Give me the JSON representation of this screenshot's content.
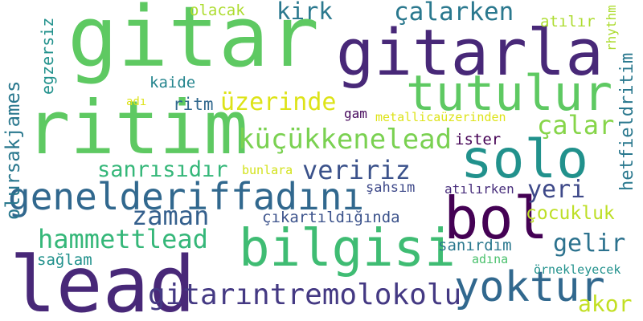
{
  "cloud": {
    "words": [
      {
        "text": "gitar",
        "color": "#5ec962"
      },
      {
        "text": "gitarla",
        "color": "#482878"
      },
      {
        "text": "tutulur",
        "color": "#5ec962"
      },
      {
        "text": "ritim",
        "color": "#5ec962"
      },
      {
        "text": "solo",
        "color": "#21918c"
      },
      {
        "text": "lead",
        "color": "#482878"
      },
      {
        "text": "bol",
        "color": "#440154"
      },
      {
        "text": "bilgisi",
        "color": "#3fbc73"
      },
      {
        "text": "genelderiffadını",
        "color": "#31688e"
      },
      {
        "text": "yoktur",
        "color": "#31688e"
      },
      {
        "text": "küçükkenelead",
        "color": "#7ad151"
      },
      {
        "text": "gitarıntremolokolu",
        "color": "#443983"
      },
      {
        "text": "hammettlead",
        "color": "#35b779"
      },
      {
        "text": "zaman",
        "color": "#35608d"
      },
      {
        "text": "veririz",
        "color": "#3b528b"
      },
      {
        "text": "üzerinde",
        "color": "#dde318"
      },
      {
        "text": "çalar",
        "color": "#86d549"
      },
      {
        "text": "çalarken",
        "color": "#2a788e"
      },
      {
        "text": "sanrısıdır",
        "color": "#35b779"
      },
      {
        "text": "gelir",
        "color": "#2c728e"
      },
      {
        "text": "kirk",
        "color": "#2a788e"
      },
      {
        "text": "yeri",
        "color": "#3e4989"
      },
      {
        "text": "akor",
        "color": "#c2df23"
      },
      {
        "text": "çocukluk",
        "color": "#bddf26"
      },
      {
        "text": "ritm",
        "color": "#31688e"
      },
      {
        "text": "kaide",
        "color": "#25858e"
      },
      {
        "text": "olacak",
        "color": "#addc30"
      },
      {
        "text": "atılır",
        "color": "#addc30"
      },
      {
        "text": "çıkartıldığında",
        "color": "#3b528b"
      },
      {
        "text": "sanırdım",
        "color": "#2a788e"
      },
      {
        "text": "sağlam",
        "color": "#21918c"
      },
      {
        "text": "ister",
        "color": "#440154"
      },
      {
        "text": "şahsım",
        "color": "#3e4989"
      },
      {
        "text": "atılırken",
        "color": "#472d7b"
      },
      {
        "text": "metallicaüzerinden",
        "color": "#dde318"
      },
      {
        "text": "bunlara",
        "color": "#d2e21b"
      },
      {
        "text": "gam",
        "color": "#46085c"
      },
      {
        "text": "adı",
        "color": "#dde318"
      },
      {
        "text": "adına",
        "color": "#4ac16d"
      },
      {
        "text": "örnekleyecek",
        "color": "#21918c"
      },
      {
        "text": "olursakjames",
        "color": "#2a788e"
      },
      {
        "text": "egzersiz",
        "color": "#21918c"
      },
      {
        "text": "hetfieldritim",
        "color": "#2a788e"
      },
      {
        "text": "rhythm",
        "color": "#addc30"
      }
    ]
  }
}
